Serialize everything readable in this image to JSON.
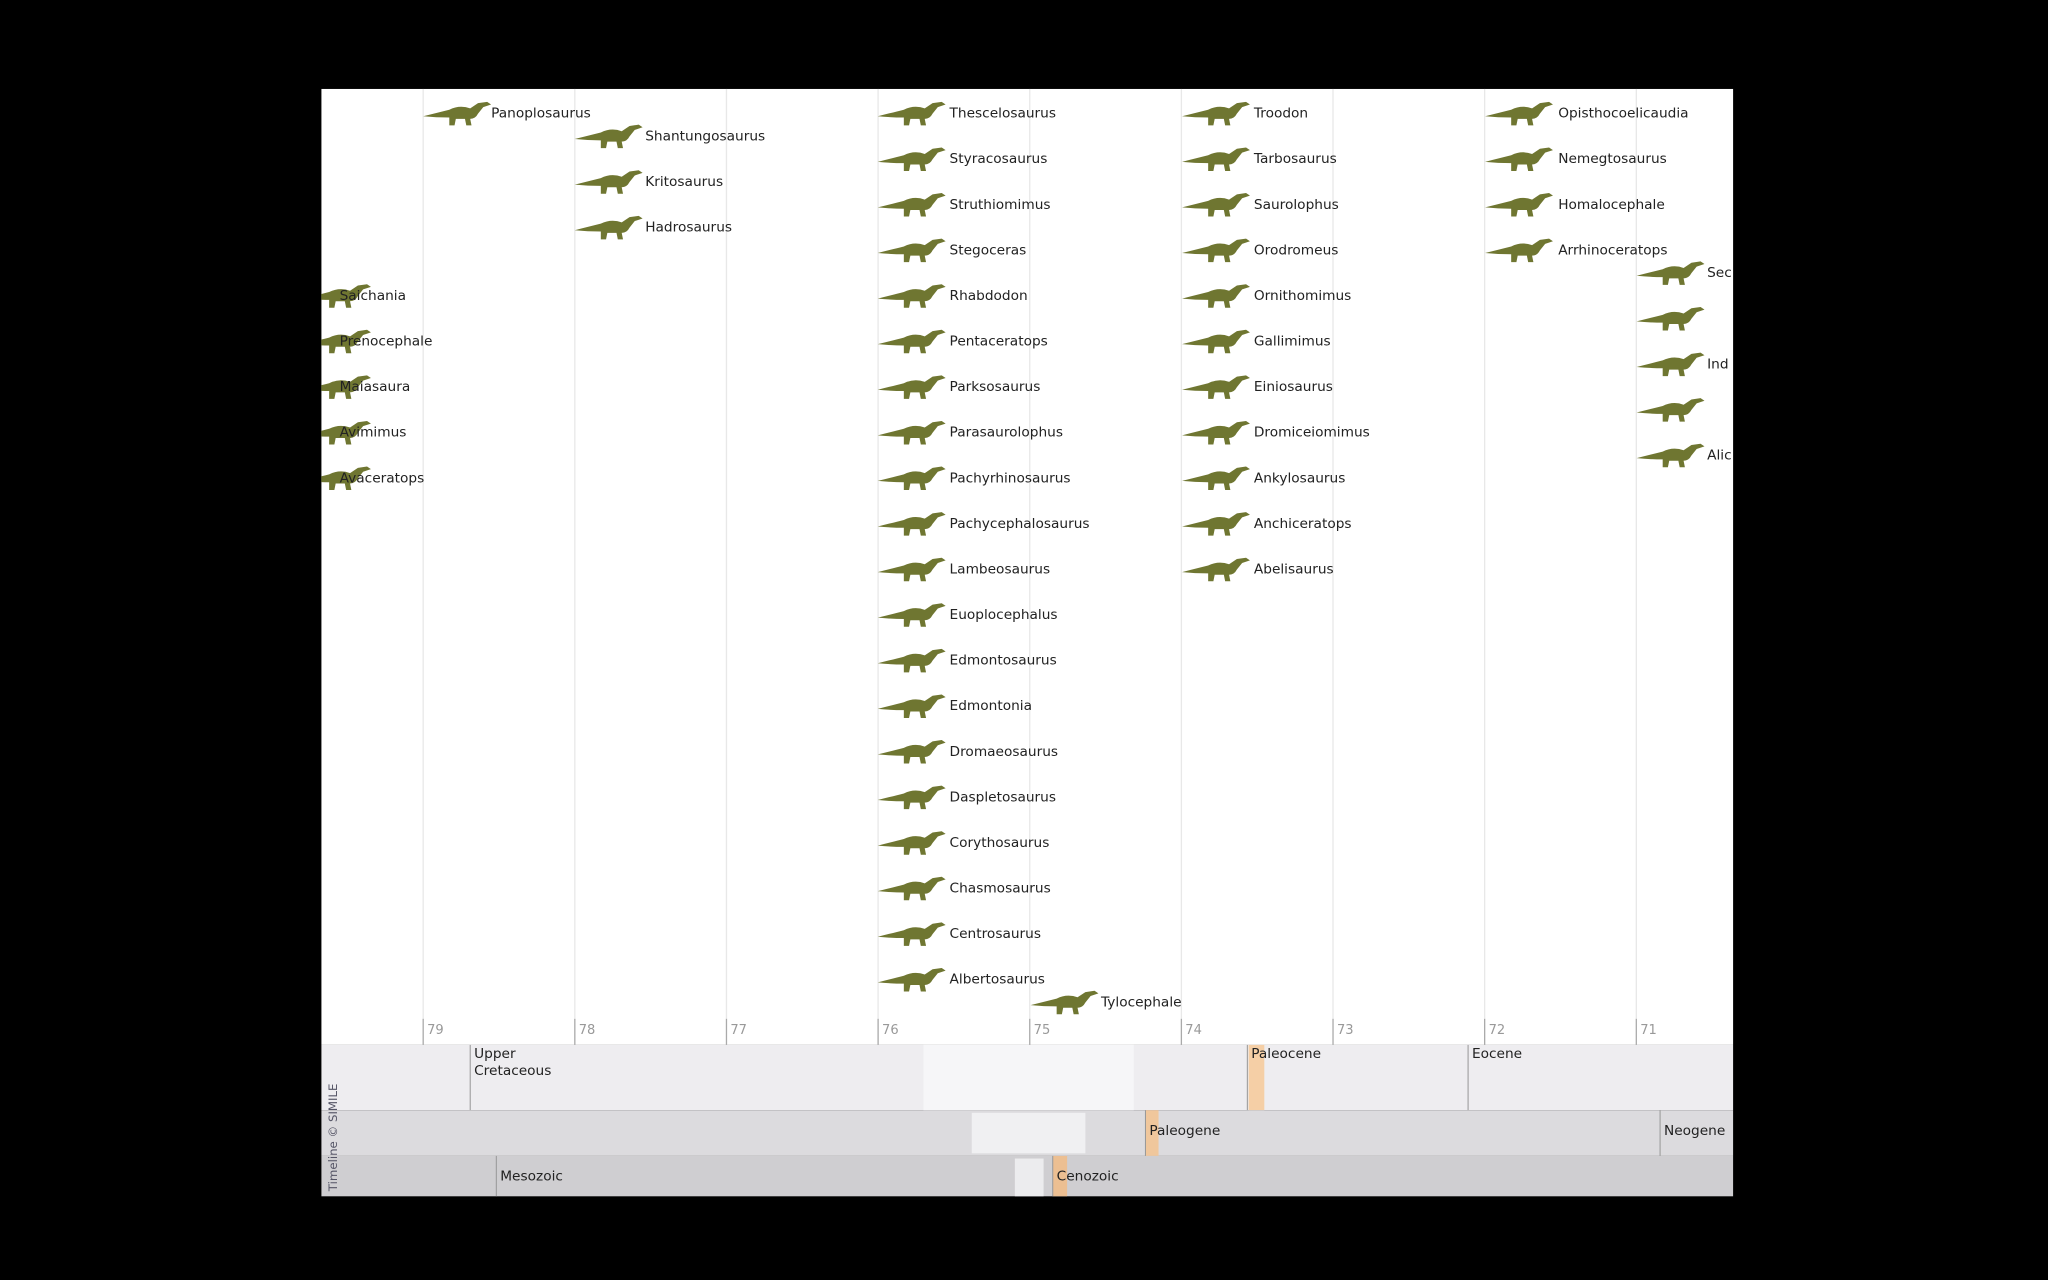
{
  "timeline": {
    "columns": [
      {
        "events": [
          "Saichania",
          "Prenocephale",
          "Maiasaura",
          "Avimimus",
          "Avaceratops"
        ]
      },
      {
        "events": [
          "Panoplosaurus"
        ]
      },
      {
        "events": [
          "Shantungosaurus",
          "Kritosaurus",
          "Hadrosaurus"
        ]
      },
      {
        "events": [
          "Thescelosaurus",
          "Styracosaurus",
          "Struthiomimus",
          "Stegoceras",
          "Rhabdodon",
          "Pentaceratops",
          "Parksosaurus",
          "Parasaurolophus",
          "Pachyrhinosaurus",
          "Pachycephalosaurus",
          "Lambeosaurus",
          "Euoplocephalus",
          "Edmontosaurus",
          "Edmontonia",
          "Dromaeosaurus",
          "Daspletosaurus",
          "Corythosaurus",
          "Chasmosaurus",
          "Centrosaurus",
          "Albertosaurus"
        ]
      },
      {
        "events": [
          "Tylocephale"
        ]
      },
      {
        "events": [
          "Troodon",
          "Tarbosaurus",
          "Saurolophus",
          "Orodromeus",
          "Ornithomimus",
          "Gallimimus",
          "Einiosaurus",
          "Dromiceiomimus",
          "Ankylosaurus",
          "Anchiceratops",
          "Abelisaurus"
        ]
      },
      {
        "events": [
          "Opisthocoelicaudia",
          "Nemegtosaurus",
          "Homalocephale",
          "Arrhinoceratops"
        ]
      },
      {
        "events": [
          "Sec",
          null,
          "Ind",
          null,
          "Alic"
        ]
      }
    ],
    "axis_ticks": [
      79,
      78,
      77,
      76,
      75,
      74,
      73,
      72,
      71
    ],
    "bands": [
      {
        "labels": [
          "Upper\nCretaceous",
          "Paleocene",
          "Eocene"
        ]
      },
      {
        "labels": [
          "Paleogene",
          "Neogene"
        ]
      },
      {
        "labels": [
          "Mesozoic",
          "Cenozoic"
        ]
      }
    ],
    "credit": "Timeline © SIMILE"
  }
}
